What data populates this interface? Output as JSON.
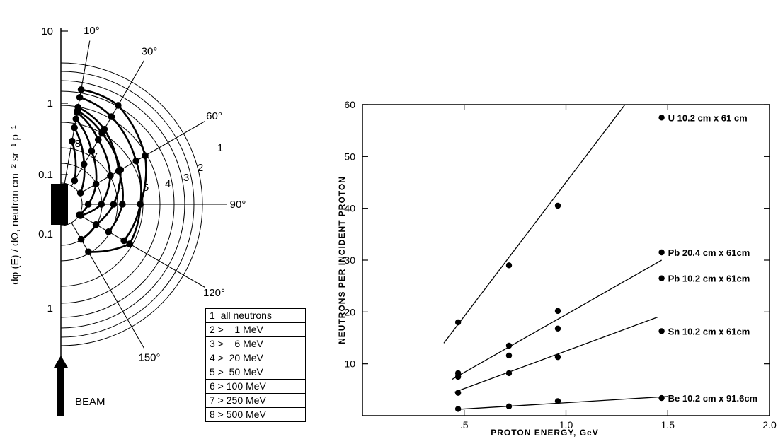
{
  "chart_data": [
    {
      "type": "polar",
      "ylabel": "dφ (E) / dΩ,  neutron cm⁻² sr⁻¹ p⁻¹",
      "radial_scale": "log",
      "radial_ticks_upper": [
        "10",
        "1",
        "0.1"
      ],
      "radial_ticks_lower": [
        "0.1",
        "1"
      ],
      "angle_labels": [
        "10°",
        "30°",
        "60°",
        "90°",
        "120°",
        "150°"
      ],
      "angles_deg": [
        10,
        30,
        60,
        90,
        120,
        150
      ],
      "beam_label": "BEAM",
      "curve_labels": [
        "1",
        "2",
        "3",
        "4",
        "5",
        "6",
        "7",
        "8"
      ],
      "legend": [
        "1  all neutrons",
        "2 >    1 MeV",
        "3 >    6 MeV",
        "4 >  20 MeV",
        "5 >  50 MeV",
        "6 > 100 MeV",
        "7 > 250 MeV",
        "8 > 500 MeV"
      ],
      "series": [
        {
          "name": "1",
          "values": [
            3.8,
            3.5,
            1.8,
            0.9,
            0.9,
            0.35
          ]
        },
        {
          "name": "2",
          "values": [
            2.8,
            2.1,
            1.2,
            0.9,
            0.7,
            null
          ]
        },
        {
          "name": "3",
          "values": [
            1.9,
            1.2,
            0.55,
            0.45,
            0.35,
            null
          ]
        },
        {
          "name": "4",
          "values": [
            1.65,
            1.0,
            0.6,
            0.32,
            0.2,
            0.2
          ]
        },
        {
          "name": "5",
          "values": [
            1.55,
            0.75,
            0.38,
            0.2,
            0.1,
            null
          ]
        },
        {
          "name": "6",
          "values": [
            1.2,
            0.45,
            0.2,
            0.12,
            0.05,
            null
          ]
        },
        {
          "name": "7",
          "values": [
            0.85,
            0.25,
            0.1,
            null,
            null,
            null
          ]
        },
        {
          "name": "8",
          "values": [
            0.5,
            0.12,
            null,
            null,
            null,
            null
          ]
        }
      ]
    },
    {
      "type": "scatter",
      "xlabel": "PROTON ENERGY,  GeV",
      "ylabel": "NEUTRONS  PER  INCIDENT  PROTON",
      "xlim": [
        0,
        2.0
      ],
      "ylim": [
        0,
        60
      ],
      "x_tick_labels": [
        ".5",
        "1.0",
        "1.5",
        "2.0"
      ],
      "y_tick_labels": [
        "10",
        "20",
        "30",
        "40",
        "50",
        "60"
      ],
      "series": [
        {
          "name": "U  10.2 cm  x  61 cm",
          "x": [
            0.47,
            0.72,
            0.96
          ],
          "y": [
            18.0,
            29.0,
            40.5
          ],
          "fit": [
            [
              0.4,
              14
            ],
            [
              1.29,
              60
            ]
          ]
        },
        {
          "name": "Pb  20.4 cm  x  61cm",
          "x": [
            0.47,
            0.72,
            0.96
          ],
          "y": [
            8.2,
            13.5,
            20.2
          ]
        },
        {
          "name": "Pb  10.2 cm  x  61cm",
          "x": [
            0.47,
            0.72,
            0.96
          ],
          "y": [
            7.5,
            11.6,
            16.8
          ],
          "fit": [
            [
              0.44,
              7
            ],
            [
              1.47,
              30
            ]
          ]
        },
        {
          "name": "Sn  10.2 cm  x  61cm",
          "x": [
            0.47,
            0.72,
            0.96
          ],
          "y": [
            4.4,
            8.2,
            11.3
          ],
          "fit": [
            [
              0.45,
              4.5
            ],
            [
              1.45,
              19
            ]
          ]
        },
        {
          "name": "Be  10.2 cm  x  91.6cm",
          "x": [
            0.47,
            0.72,
            0.96
          ],
          "y": [
            1.3,
            1.8,
            2.8
          ],
          "fit": [
            [
              0.46,
              1.2
            ],
            [
              1.5,
              3.7
            ]
          ]
        }
      ]
    }
  ]
}
